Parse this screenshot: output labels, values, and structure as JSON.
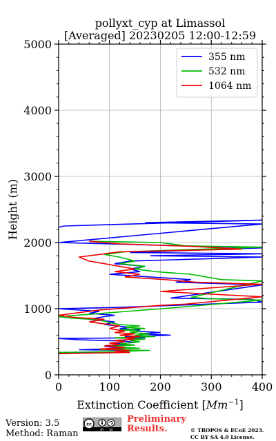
{
  "chart_data": {
    "type": "line",
    "title": "pollyxt_cyp at Limassol",
    "subtitle": "[Averaged] 20230205 12:00-12:59",
    "xlabel": "Extinction Coefficient [Mm⁻¹]",
    "ylabel": "Height (m)",
    "xlim": [
      0,
      400
    ],
    "ylim": [
      0,
      5000
    ],
    "xticks": [
      0,
      100,
      200,
      300,
      400
    ],
    "yticks": [
      0,
      1000,
      2000,
      3000,
      4000,
      5000
    ],
    "grid": true,
    "legend_position": "top-right",
    "series": [
      {
        "name": "355 nm",
        "color": "#0000ff",
        "points": [
          [
            0,
            330
          ],
          [
            120,
            350
          ],
          [
            140,
            370
          ],
          [
            40,
            380
          ],
          [
            130,
            400
          ],
          [
            90,
            430
          ],
          [
            140,
            450
          ],
          [
            110,
            470
          ],
          [
            150,
            490
          ],
          [
            130,
            510
          ],
          [
            40,
            530
          ],
          [
            0,
            550
          ],
          [
            170,
            560
          ],
          [
            130,
            580
          ],
          [
            220,
            600
          ],
          [
            160,
            620
          ],
          [
            200,
            640
          ],
          [
            150,
            660
          ],
          [
            160,
            680
          ],
          [
            120,
            700
          ],
          [
            140,
            720
          ],
          [
            90,
            760
          ],
          [
            110,
            800
          ],
          [
            60,
            840
          ],
          [
            90,
            880
          ],
          [
            110,
            900
          ],
          [
            60,
            930
          ],
          [
            80,
            960
          ],
          [
            0,
            1000
          ],
          [
            120,
            1020
          ],
          [
            400,
            1100
          ],
          [
            380,
            1140
          ],
          [
            220,
            1160
          ],
          [
            400,
            1360
          ],
          [
            230,
            1400
          ],
          [
            260,
            1440
          ],
          [
            180,
            1480
          ],
          [
            100,
            1520
          ],
          [
            160,
            1560
          ],
          [
            140,
            1600
          ],
          [
            170,
            1640
          ],
          [
            110,
            1680
          ],
          [
            140,
            1720
          ],
          [
            400,
            1780
          ],
          [
            180,
            1800
          ],
          [
            400,
            1830
          ],
          [
            140,
            1850
          ],
          [
            400,
            1920
          ],
          [
            300,
            1940
          ],
          [
            0,
            2000
          ],
          [
            400,
            2280
          ],
          [
            170,
            2300
          ],
          [
            400,
            2340
          ],
          [
            10,
            2250
          ],
          [
            0,
            2230
          ]
        ]
      },
      {
        "name": "532 nm",
        "color": "#00bb00",
        "points": [
          [
            0,
            340
          ],
          [
            110,
            350
          ],
          [
            180,
            370
          ],
          [
            80,
            380
          ],
          [
            160,
            400
          ],
          [
            100,
            430
          ],
          [
            150,
            450
          ],
          [
            120,
            470
          ],
          [
            160,
            500
          ],
          [
            140,
            520
          ],
          [
            170,
            540
          ],
          [
            110,
            560
          ],
          [
            190,
            580
          ],
          [
            150,
            600
          ],
          [
            180,
            620
          ],
          [
            140,
            640
          ],
          [
            160,
            660
          ],
          [
            120,
            680
          ],
          [
            170,
            700
          ],
          [
            130,
            720
          ],
          [
            160,
            740
          ],
          [
            120,
            760
          ],
          [
            100,
            790
          ],
          [
            80,
            830
          ],
          [
            20,
            860
          ],
          [
            0,
            880
          ],
          [
            220,
            1010
          ],
          [
            400,
            1130
          ],
          [
            300,
            1150
          ],
          [
            260,
            1170
          ],
          [
            400,
            1420
          ],
          [
            320,
            1440
          ],
          [
            290,
            1480
          ],
          [
            260,
            1520
          ],
          [
            190,
            1560
          ],
          [
            150,
            1600
          ],
          [
            170,
            1640
          ],
          [
            120,
            1680
          ],
          [
            150,
            1720
          ],
          [
            120,
            1780
          ],
          [
            90,
            1820
          ],
          [
            130,
            1860
          ],
          [
            400,
            1930
          ],
          [
            250,
            1950
          ],
          [
            200,
            2000
          ],
          [
            60,
            2020
          ]
        ]
      },
      {
        "name": "1064 nm",
        "color": "#ee0000",
        "points": [
          [
            0,
            320
          ],
          [
            140,
            340
          ],
          [
            110,
            350
          ],
          [
            140,
            370
          ],
          [
            80,
            390
          ],
          [
            130,
            410
          ],
          [
            90,
            440
          ],
          [
            120,
            460
          ],
          [
            100,
            480
          ],
          [
            130,
            500
          ],
          [
            110,
            520
          ],
          [
            150,
            540
          ],
          [
            130,
            560
          ],
          [
            160,
            580
          ],
          [
            120,
            600
          ],
          [
            150,
            620
          ],
          [
            110,
            640
          ],
          [
            130,
            660
          ],
          [
            100,
            700
          ],
          [
            120,
            740
          ],
          [
            90,
            770
          ],
          [
            60,
            800
          ],
          [
            90,
            840
          ],
          [
            30,
            870
          ],
          [
            0,
            900
          ],
          [
            80,
            980
          ],
          [
            200,
            1050
          ],
          [
            250,
            1070
          ],
          [
            400,
            1180
          ],
          [
            350,
            1200
          ],
          [
            200,
            1260
          ],
          [
            400,
            1370
          ],
          [
            270,
            1400
          ],
          [
            210,
            1440
          ],
          [
            130,
            1480
          ],
          [
            160,
            1520
          ],
          [
            110,
            1560
          ],
          [
            150,
            1600
          ],
          [
            120,
            1640
          ],
          [
            90,
            1680
          ],
          [
            60,
            1720
          ],
          [
            40,
            1780
          ],
          [
            80,
            1820
          ],
          [
            120,
            1860
          ],
          [
            360,
            1900
          ],
          [
            270,
            1940
          ],
          [
            120,
            1980
          ],
          [
            60,
            2020
          ]
        ]
      }
    ]
  },
  "footer": {
    "version": "Version: 3.5",
    "method": "Method: Raman",
    "cc_badge": [
      "cc",
      "BY",
      "SA"
    ],
    "preliminary_line1": "Preliminary",
    "preliminary_line2": "Results.",
    "preliminary_color": "#ee3333",
    "license_line1": "© TROPOS & ECoE 2023.",
    "license_line2": "CC BY SA 4.0 License."
  }
}
